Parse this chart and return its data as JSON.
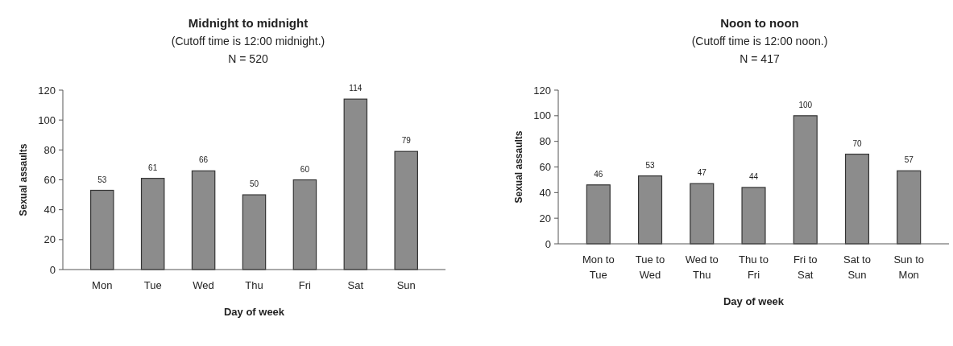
{
  "chart_data": [
    {
      "type": "bar",
      "title": "Midnight to midnight",
      "subtitle": "(Cutoff time is 12:00 midnight.)",
      "annotations": [
        "N = 520"
      ],
      "xlabel": "Day of week",
      "ylabel": "Sexual assaults",
      "categories": [
        "Mon",
        "Tue",
        "Wed",
        "Thu",
        "Fri",
        "Sat",
        "Sun"
      ],
      "values": [
        53,
        61,
        66,
        50,
        60,
        114,
        79
      ],
      "color": "#8c8c8c",
      "ylim": [
        0,
        120
      ],
      "yticks": [
        0,
        20,
        40,
        60,
        80,
        100,
        120
      ],
      "data_labels": true
    },
    {
      "type": "bar",
      "title": "Noon to noon",
      "subtitle": "(Cutoff time is 12:00 noon.)",
      "annotations": [
        "N = 417"
      ],
      "xlabel": "Day of week",
      "ylabel": "Sexual assaults",
      "categories": [
        "Mon to Tue",
        "Tue to Wed",
        "Wed to Thu",
        "Thu to Fri",
        "Fri to Sat",
        "Sat to Sun",
        "Sun to Mon"
      ],
      "values": [
        46,
        53,
        47,
        44,
        100,
        70,
        57
      ],
      "color": "#8c8c8c",
      "ylim": [
        0,
        120
      ],
      "yticks": [
        0,
        20,
        40,
        60,
        80,
        100,
        120
      ],
      "data_labels": true
    }
  ]
}
